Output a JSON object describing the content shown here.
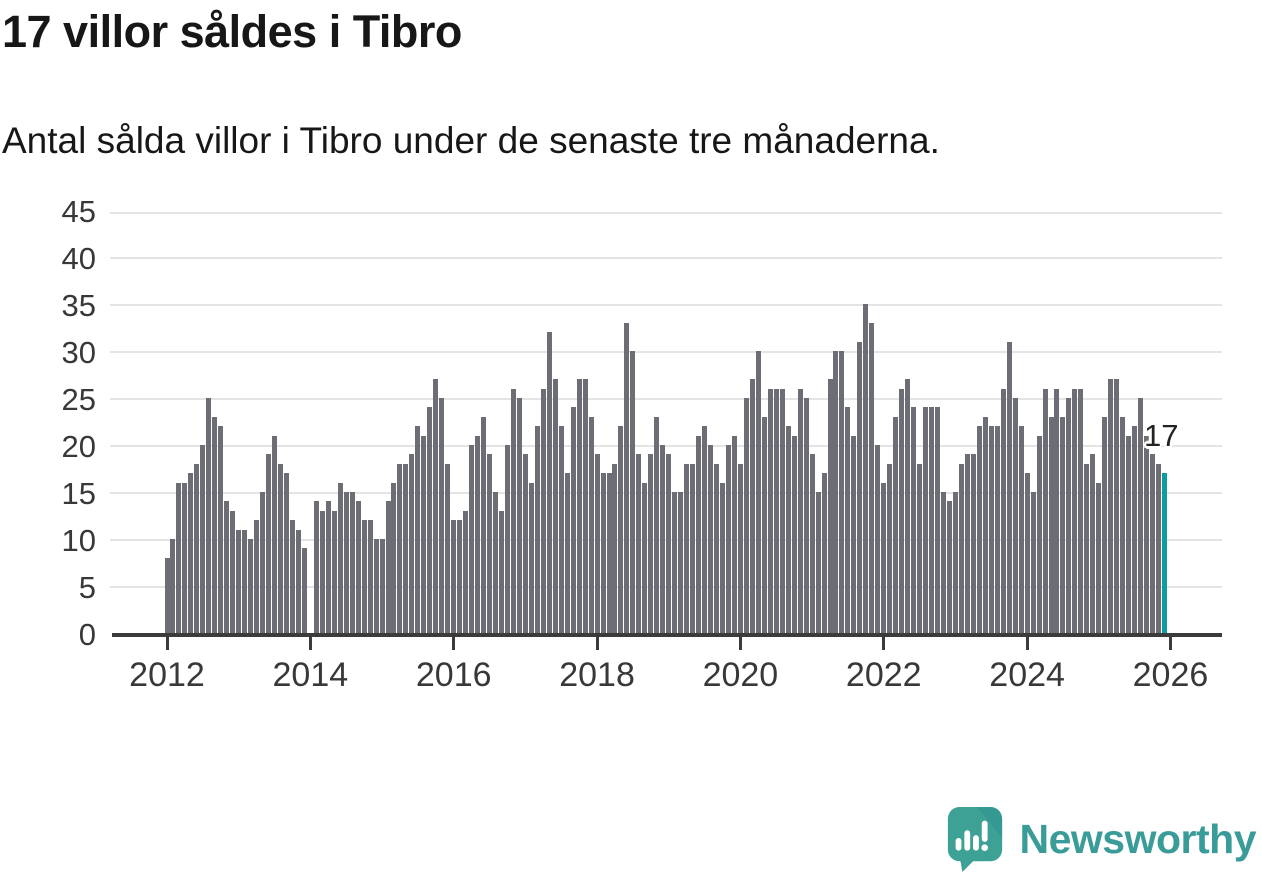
{
  "header": {
    "title": "17 villor såldes i Tibro",
    "subtitle": "Antal sålda villor i Tibro under de senaste tre månaderna."
  },
  "chart_data": {
    "type": "bar",
    "title": "17 villor såldes i Tibro",
    "subtitle": "Antal sålda villor i Tibro under de senaste tre månaderna.",
    "x_start": {
      "year": 2012,
      "month": 1,
      "frequency": "monthly"
    },
    "x_end": {
      "year": 2025,
      "month": 12
    },
    "values": [
      8,
      10,
      16,
      16,
      17,
      18,
      20,
      25,
      23,
      22,
      14,
      13,
      11,
      11,
      10,
      12,
      15,
      19,
      21,
      18,
      17,
      12,
      11,
      9,
      0,
      14,
      13,
      14,
      13,
      16,
      15,
      15,
      14,
      12,
      12,
      10,
      10,
      14,
      16,
      18,
      18,
      19,
      22,
      21,
      24,
      27,
      25,
      18,
      12,
      12,
      13,
      20,
      21,
      23,
      19,
      15,
      13,
      20,
      26,
      25,
      19,
      16,
      22,
      26,
      32,
      27,
      22,
      17,
      24,
      27,
      27,
      23,
      19,
      17,
      17,
      18,
      22,
      33,
      30,
      19,
      16,
      19,
      23,
      20,
      19,
      15,
      15,
      18,
      18,
      21,
      22,
      20,
      18,
      16,
      20,
      21,
      18,
      25,
      27,
      30,
      23,
      26,
      26,
      26,
      22,
      21,
      26,
      25,
      19,
      15,
      17,
      27,
      30,
      30,
      24,
      21,
      31,
      35,
      33,
      20,
      16,
      18,
      23,
      26,
      27,
      24,
      18,
      24,
      24,
      24,
      15,
      14,
      15,
      18,
      19,
      19,
      22,
      23,
      22,
      22,
      26,
      31,
      25,
      22,
      17,
      15,
      21,
      26,
      23,
      26,
      23,
      25,
      26,
      26,
      18,
      19,
      16,
      23,
      27,
      27,
      23,
      21,
      22,
      25,
      21,
      19,
      18,
      17
    ],
    "highlight_last": true,
    "annotation": {
      "label": "17",
      "value": 17
    },
    "yticks": [
      0,
      5,
      10,
      15,
      20,
      25,
      30,
      35,
      40,
      45
    ],
    "xticks": [
      2012,
      2014,
      2016,
      2018,
      2020,
      2022,
      2024,
      2026
    ],
    "ylim": [
      0,
      45
    ],
    "grid": true,
    "legend": "none",
    "bar_color": "#6d6d75",
    "highlight_color": "#0d9da0"
  },
  "footer": {
    "brand": "Newsworthy",
    "brand_color": "#3a9c99",
    "icon_color": "#3ea195"
  }
}
